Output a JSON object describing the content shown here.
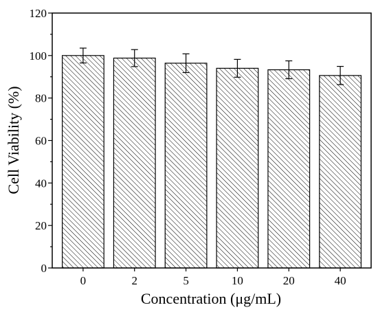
{
  "chart_data": {
    "type": "bar",
    "title": "",
    "xlabel": "Concentration (μg/mL)",
    "ylabel": "Cell Viability (%)",
    "categories": [
      "0",
      "2",
      "5",
      "10",
      "20",
      "40"
    ],
    "values": [
      100.0,
      98.8,
      96.4,
      94.0,
      93.3,
      90.6
    ],
    "errors": [
      3.5,
      4.0,
      4.4,
      4.2,
      4.2,
      4.3
    ],
    "ylim": [
      0,
      120
    ],
    "yticks": [
      0,
      20,
      40,
      60,
      80,
      100,
      120
    ],
    "grid": false,
    "legend": "none",
    "bar_pattern": "diagonal-hatch",
    "colors": {
      "bar_fill": "#ffffff",
      "hatch": "#000000",
      "edge": "#000000"
    }
  }
}
